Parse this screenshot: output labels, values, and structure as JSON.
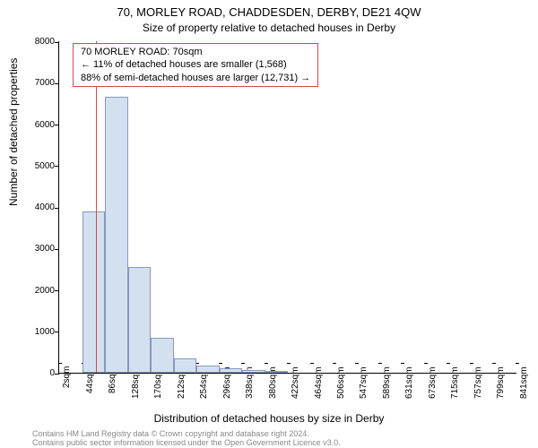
{
  "title": "70, MORLEY ROAD, CHADDESDEN, DERBY, DE21 4QW",
  "subtitle": "Size of property relative to detached houses in Derby",
  "info_box": {
    "line1": "70 MORLEY ROAD: 70sqm",
    "line2": "← 11% of detached houses are smaller (1,568)",
    "line3": "88% of semi-detached houses are larger (12,731) →"
  },
  "chart": {
    "type": "histogram",
    "background_color": "#ffffff",
    "bar_fill": "#d3e0f0",
    "bar_border": "#8899bb",
    "marker_color": "#d04a4a",
    "info_border": "#d04a4a",
    "ylabel": "Number of detached properties",
    "xlabel": "Distribution of detached houses by size in Derby",
    "ylim": [
      0,
      8000
    ],
    "ytick_step": 1000,
    "yticks": [
      0,
      1000,
      2000,
      3000,
      4000,
      5000,
      6000,
      7000,
      8000
    ],
    "xticks": [
      "2sqm",
      "44sqm",
      "86sqm",
      "128sqm",
      "170sqm",
      "212sqm",
      "254sqm",
      "296sqm",
      "338sqm",
      "380sqm",
      "422sqm",
      "464sqm",
      "506sqm",
      "547sqm",
      "589sqm",
      "631sqm",
      "673sqm",
      "715sqm",
      "757sqm",
      "799sqm",
      "841sqm"
    ],
    "marker_x_value": 70,
    "x_min": 2,
    "x_max": 841,
    "bars": [
      {
        "x_start": 44,
        "value": 3900
      },
      {
        "x_start": 86,
        "value": 6650
      },
      {
        "x_start": 128,
        "value": 2550
      },
      {
        "x_start": 170,
        "value": 850
      },
      {
        "x_start": 212,
        "value": 350
      },
      {
        "x_start": 254,
        "value": 180
      },
      {
        "x_start": 296,
        "value": 100
      },
      {
        "x_start": 338,
        "value": 60
      },
      {
        "x_start": 380,
        "value": 40
      }
    ],
    "label_fontsize": 12,
    "tick_fontsize": 10,
    "title_fontsize": 13
  },
  "footer": {
    "line1": "Contains HM Land Registry data © Crown copyright and database right 2024.",
    "line2": "Contains public sector information licensed under the Open Government Licence v3.0."
  }
}
